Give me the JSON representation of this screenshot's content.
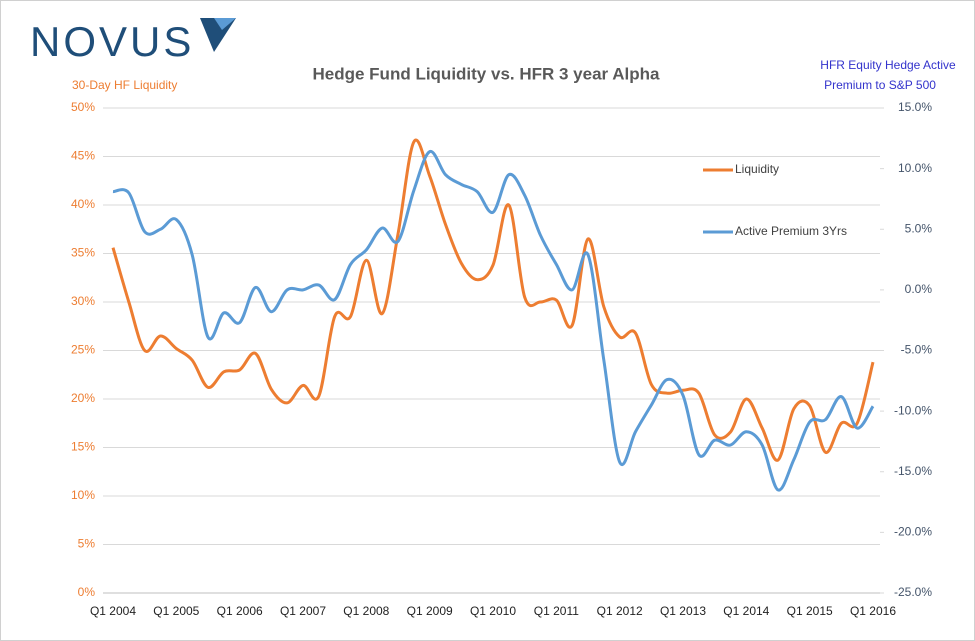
{
  "brand": "NOVUS",
  "chart_data": {
    "type": "line",
    "title": "Hedge Fund Liquidity vs. HFR 3 year Alpha",
    "y_label": "30-Day HF Liquidity",
    "y2_label": [
      "HFR Equity Hedge  Active",
      "Premium to S&P 500"
    ],
    "categories": [
      "Q1 2004",
      null,
      null,
      null,
      "Q1 2005",
      null,
      null,
      null,
      "Q1 2006",
      null,
      null,
      null,
      "Q1 2007",
      null,
      null,
      null,
      "Q1 2008",
      null,
      null,
      null,
      "Q1 2009",
      null,
      null,
      null,
      "Q1 2010",
      null,
      null,
      null,
      "Q1 2011",
      null,
      null,
      null,
      "Q1 2012",
      null,
      null,
      null,
      "Q1 2013",
      null,
      null,
      null,
      "Q1 2014",
      null,
      null,
      null,
      "Q1 2015",
      null,
      null,
      null,
      "Q1 2016"
    ],
    "series": [
      {
        "name": "Liquidity",
        "color": "#ED7D31",
        "axis": "y",
        "values": [
          35.6,
          30,
          25,
          26.5,
          25.2,
          24,
          21.2,
          22.8,
          23,
          24.7,
          21,
          19.6,
          21.4,
          20.3,
          28.5,
          28.5,
          34.3,
          28.8,
          37,
          46.5,
          43,
          38,
          34,
          32.3,
          33.8,
          40,
          30.5,
          30,
          30.2,
          27.6,
          36.5,
          29.5,
          26.4,
          26.8,
          21.5,
          20.6,
          20.9,
          20.6,
          16.3,
          16.6,
          20,
          17,
          13.7,
          19,
          19.3,
          14.5,
          17.5,
          17.5,
          23.8
        ]
      },
      {
        "name": "Active Premium 3Yrs",
        "color": "#5B9BD5",
        "axis": "y2",
        "values": [
          8.1,
          8,
          4.8,
          5,
          5.8,
          2.9,
          -3.9,
          -1.9,
          -2.7,
          0.2,
          -1.8,
          0,
          0,
          0.4,
          -0.8,
          2.1,
          3.3,
          5.1,
          4,
          8.2,
          11.4,
          9.5,
          8.7,
          8.1,
          6.4,
          9.5,
          7.8,
          4.5,
          2.1,
          0,
          2.9,
          -5.8,
          -14.2,
          -11.7,
          -9.5,
          -7.4,
          -8.7,
          -13.6,
          -12.4,
          -12.8,
          -11.7,
          -12.8,
          -16.5,
          -14,
          -10.9,
          -10.7,
          -8.8,
          -11.4,
          -9.6
        ]
      }
    ],
    "ylim": [
      0,
      50
    ],
    "yticks": [
      {
        "value": 0,
        "label": "0%"
      },
      {
        "value": 5,
        "label": "5%"
      },
      {
        "value": 10,
        "label": "10%"
      },
      {
        "value": 15,
        "label": "15%"
      },
      {
        "value": 20,
        "label": "20%"
      },
      {
        "value": 25,
        "label": "25%"
      },
      {
        "value": 30,
        "label": "30%"
      },
      {
        "value": 35,
        "label": "35%"
      },
      {
        "value": 40,
        "label": "40%"
      },
      {
        "value": 45,
        "label": "45%"
      },
      {
        "value": 50,
        "label": "50%"
      }
    ],
    "y2lim": [
      -25,
      15
    ],
    "y2ticks": [
      {
        "value": -25,
        "label": "-25.0%"
      },
      {
        "value": -20,
        "label": "-20.0%"
      },
      {
        "value": -15,
        "label": "-15.0%"
      },
      {
        "value": -10,
        "label": "-10.0%"
      },
      {
        "value": -5,
        "label": "-5.0%"
      },
      {
        "value": 0,
        "label": "0.0%"
      },
      {
        "value": 5,
        "label": "5.0%"
      },
      {
        "value": 10,
        "label": "10.0%"
      },
      {
        "value": 15,
        "label": "15.0%"
      }
    ],
    "grid": true
  }
}
